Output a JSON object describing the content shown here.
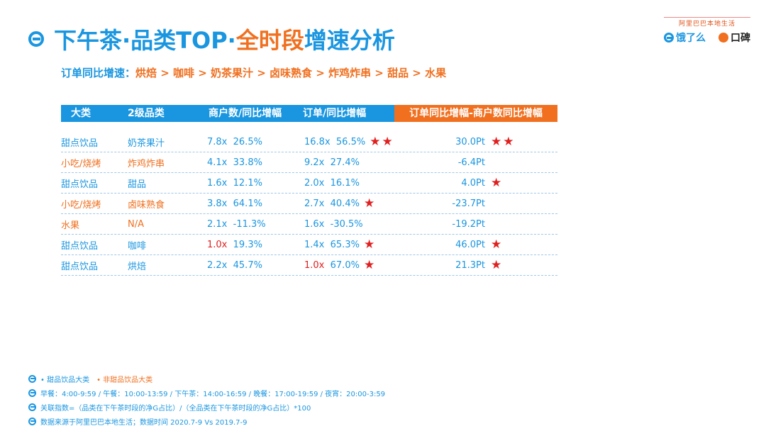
{
  "title": {
    "part_blue": "下午茶·品类TOP·",
    "part_orange": "全时段",
    "part_blue2": "增速分析"
  },
  "brand": {
    "top": "阿里巴巴本地生活",
    "ele": "饿了么",
    "koubei": "口碑"
  },
  "subtitle": {
    "label": "订单同比增速：",
    "sequence": "烘焙 > 咖啡 > 奶茶果汁 > 卤味熟食 > 炸鸡炸串 > 甜品 > 水果"
  },
  "table": {
    "headers": {
      "category": "大类",
      "sub": "2级品类",
      "merchant": "商户数/同比增幅",
      "order": "订单/同比增幅",
      "diff": "订单同比增幅-商户数同比增幅"
    },
    "rows": [
      {
        "category": "甜点饮品",
        "sweet": true,
        "sub": "奶茶果汁",
        "m_idx": "7.8x",
        "m_yoy": "26.5%",
        "o_idx": "16.8x",
        "o_yoy": "56.5%",
        "o_stars": "★★",
        "diff": "30.0Pt",
        "d_stars": "★★"
      },
      {
        "category": "小吃/烧烤",
        "sweet": false,
        "sub": "炸鸡炸串",
        "m_idx": "4.1x",
        "m_yoy": "33.8%",
        "o_idx": "9.2x",
        "o_yoy": "27.4%",
        "o_stars": "",
        "diff": "-6.4Pt",
        "d_stars": ""
      },
      {
        "category": "甜点饮品",
        "sweet": true,
        "sub": "甜品",
        "m_idx": "1.6x",
        "m_yoy": "12.1%",
        "o_idx": "2.0x",
        "o_yoy": "16.1%",
        "o_stars": "",
        "diff": "4.0Pt",
        "d_stars": "★"
      },
      {
        "category": "小吃/烧烤",
        "sweet": false,
        "sub": "卤味熟食",
        "m_idx": "3.8x",
        "m_yoy": "64.1%",
        "o_idx": "2.7x",
        "o_yoy": "40.4%",
        "o_stars": "★",
        "diff": "-23.7Pt",
        "d_stars": ""
      },
      {
        "category": "水果",
        "sweet": false,
        "sub": "N/A",
        "m_idx": "2.1x",
        "m_yoy": "-11.3%",
        "o_idx": "1.6x",
        "o_yoy": "-30.5%",
        "o_stars": "",
        "diff": "-19.2Pt",
        "d_stars": ""
      },
      {
        "category": "甜点饮品",
        "sweet": true,
        "sub": "咖啡",
        "m_idx": "1.0x",
        "m_red": true,
        "m_yoy": "19.3%",
        "o_idx": "1.4x",
        "o_yoy": "65.3%",
        "o_stars": "★",
        "diff": "46.0Pt",
        "d_stars": "★"
      },
      {
        "category": "甜点饮品",
        "sweet": true,
        "sub": "烘焙",
        "m_idx": "2.2x",
        "m_yoy": "45.7%",
        "o_idx": "1.0x",
        "o_red": true,
        "o_yoy": "67.0%",
        "o_stars": "★",
        "diff": "21.3Pt",
        "d_stars": "★"
      }
    ]
  },
  "notes": {
    "legend_sweet": "• 甜品饮品大类",
    "legend_other": "• 非甜品饮品大类",
    "meals": "早餐：4:00-9:59 / 午餐：10:00-13:59 / 下午茶：14:00-16:59 / 晚餐：17:00-19:59 / 夜宵：20:00-3:59",
    "index": "关联指数=（品类在下午茶时段的净G占比）/（全品类在下午茶时段的净G占比）*100",
    "source": "数据来源于阿里巴巴本地生活；数据时间 2020.7-9 Vs 2019.7-9"
  },
  "colors": {
    "blue": "#1a96e0",
    "orange": "#f07020",
    "red": "#e02020"
  }
}
